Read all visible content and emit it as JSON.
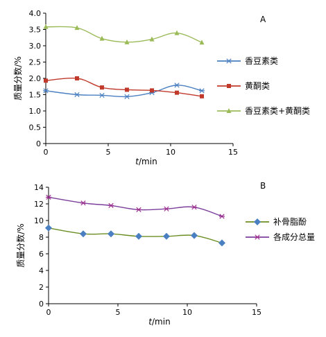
{
  "chart_data": [
    {
      "type": "line",
      "panel_label": "A",
      "xlabel_italic": "t",
      "xlabel_unit": "/min",
      "ylabel": "质量分数/%",
      "xlim": [
        0,
        15
      ],
      "ylim": [
        0,
        4.0
      ],
      "xticks": [
        "0",
        "5",
        "10",
        "15"
      ],
      "yticks": [
        "0",
        "0.5",
        "1.0",
        "1.5",
        "2.0",
        "2.5",
        "3.0",
        "3.5",
        "4.0"
      ],
      "grid": false,
      "legend_position": "right",
      "series": [
        {
          "name": "香豆素类",
          "color": "#4a7fc1",
          "marker": "star",
          "x": [
            0,
            2.5,
            4.5,
            6.5,
            8.5,
            10.5,
            12.5
          ],
          "y": [
            1.62,
            1.5,
            1.48,
            1.44,
            1.56,
            1.79,
            1.62
          ]
        },
        {
          "name": "黄酮类",
          "color": "#c0392b",
          "marker": "square",
          "x": [
            0,
            2.5,
            4.5,
            6.5,
            8.5,
            10.5,
            12.5
          ],
          "y": [
            1.93,
            2.0,
            1.72,
            1.65,
            1.63,
            1.56,
            1.45
          ]
        },
        {
          "name": "香豆素类+黄酮类",
          "color": "#9bbb59",
          "marker": "triangle",
          "x": [
            0,
            2.5,
            4.5,
            6.5,
            8.5,
            10.5,
            12.5
          ],
          "y": [
            3.58,
            3.55,
            3.22,
            3.11,
            3.2,
            3.39,
            3.1
          ]
        }
      ]
    },
    {
      "type": "line",
      "panel_label": "B",
      "xlabel_italic": "t",
      "xlabel_unit": "/min",
      "ylabel": "质量分数/%",
      "xlim": [
        0,
        15
      ],
      "ylim": [
        0,
        14
      ],
      "xticks": [
        "0",
        "5",
        "10",
        "15"
      ],
      "yticks": [
        "0",
        "2",
        "4",
        "6",
        "8",
        "10",
        "12",
        "14"
      ],
      "grid": false,
      "legend_position": "right",
      "series": [
        {
          "name": "补骨脂酚",
          "color": "#4a7fc1",
          "line_color": "#6b8e23",
          "marker": "diamond",
          "x": [
            0,
            2.5,
            4.5,
            6.5,
            8.5,
            10.5,
            12.5
          ],
          "y": [
            9.1,
            8.4,
            8.4,
            8.1,
            8.1,
            8.2,
            7.3
          ]
        },
        {
          "name": "各成分总量",
          "color": "#9b2f8f",
          "line_color": "#7b3f9b",
          "marker": "star",
          "x": [
            0,
            2.5,
            4.5,
            6.5,
            8.5,
            10.5,
            12.5
          ],
          "y": [
            12.8,
            12.1,
            11.8,
            11.3,
            11.4,
            11.6,
            10.5
          ]
        }
      ]
    }
  ]
}
